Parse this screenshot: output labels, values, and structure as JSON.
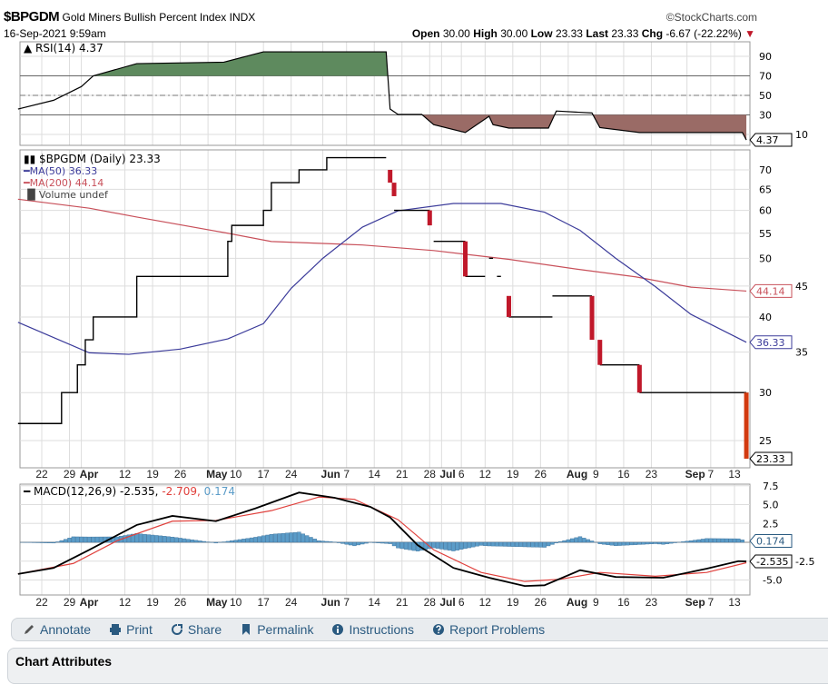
{
  "header": {
    "symbol": "$BPGDM",
    "name": "Gold Miners Bullish Percent Index",
    "exchange": "INDX",
    "date": "16-Sep-2021 9:59am",
    "copyright": "©StockCharts.com",
    "open_label": "Open",
    "open": "30.00",
    "high_label": "High",
    "high": "30.00",
    "low_label": "Low",
    "low": "23.33",
    "last_label": "Last",
    "last": "23.33",
    "chg_label": "Chg",
    "chg": "-6.67 (-22.22%)"
  },
  "colors": {
    "rsi_up": "#5e8a5e",
    "rsi_down": "#9a6b66",
    "ma50": "#3b3b9a",
    "ma200": "#c8505a",
    "candle_down": "#c0182a",
    "macd": "#000000",
    "signal": "#e0403c",
    "hist": "#5b9cc8"
  },
  "toolbar": [
    {
      "label": "Annotate",
      "icon": "pencil-icon"
    },
    {
      "label": "Print",
      "icon": "printer-icon"
    },
    {
      "label": "Share",
      "icon": "share-icon"
    },
    {
      "label": "Permalink",
      "icon": "bookmark-icon"
    },
    {
      "label": "Instructions",
      "icon": "info-icon"
    },
    {
      "label": "Report Problems",
      "icon": "question-icon"
    }
  ],
  "attributes_title": "Chart Attributes",
  "chart_data": [
    {
      "type": "area",
      "panel": "RSI",
      "legend": "RSI(14) 4.37",
      "last": "4.37",
      "yticks": [
        "90",
        "70",
        "50",
        "30",
        "10"
      ],
      "ylim": [
        0,
        100
      ],
      "points": [
        [
          "2021-03-16",
          36
        ],
        [
          "2021-03-25",
          45
        ],
        [
          "2021-04-01",
          59
        ],
        [
          "2021-04-04",
          70
        ],
        [
          "2021-04-15",
          82.5
        ],
        [
          "2021-05-07",
          84
        ],
        [
          "2021-05-17",
          94.6
        ],
        [
          "2021-06-17",
          94.6
        ],
        [
          "2021-06-18",
          36
        ],
        [
          "2021-06-20",
          30.5
        ],
        [
          "2021-06-26",
          30.5
        ],
        [
          "2021-06-29",
          20
        ],
        [
          "2021-07-07",
          12
        ],
        [
          "2021-07-13",
          28.6
        ],
        [
          "2021-07-14",
          20
        ],
        [
          "2021-07-18",
          16.5
        ],
        [
          "2021-07-28",
          16.5
        ],
        [
          "2021-07-30",
          34
        ],
        [
          "2021-08-08",
          32
        ],
        [
          "2021-08-10",
          17
        ],
        [
          "2021-08-20",
          12
        ],
        [
          "2021-09-15",
          12
        ],
        [
          "2021-09-16",
          4.37
        ]
      ]
    },
    {
      "type": "line",
      "panel": "Price",
      "scale": "log",
      "legend": "$BPGDM (Daily) 23.33",
      "ma50_legend": "MA(50) 36.33",
      "ma200_legend": "MA(200) 44.14",
      "volume_legend": "Volume undef",
      "yticks": [
        "70",
        "65",
        "60",
        "55",
        "50",
        "45",
        "40",
        "35",
        "30",
        "25"
      ],
      "ylim": [
        22,
        74
      ],
      "last_tags": {
        "ma200": "44.14",
        "ma50": "36.33",
        "price": "23.33"
      },
      "steps": [
        [
          "2021-03-16",
          26.67
        ],
        [
          "2021-03-27",
          30
        ],
        [
          "2021-03-31",
          33.33
        ],
        [
          "2021-04-02",
          36.67
        ],
        [
          "2021-04-04",
          40
        ],
        [
          "2021-04-15",
          46.67
        ],
        [
          "2021-05-08",
          53.33
        ],
        [
          "2021-05-09",
          56.67
        ],
        [
          "2021-05-16",
          56.67
        ],
        [
          "2021-05-17",
          60
        ],
        [
          "2021-05-19",
          66.67
        ],
        [
          "2021-05-26",
          70
        ],
        [
          "2021-06-02",
          73.33
        ],
        [
          "2021-06-17",
          73.33
        ]
      ],
      "segments": [
        [
          "2021-06-19",
          "2021-06-28",
          60
        ],
        [
          "2021-06-29",
          "2021-07-07",
          53.33
        ],
        [
          "2021-07-07",
          "2021-07-12",
          46.67
        ],
        [
          "2021-07-13",
          "2021-07-14",
          50
        ],
        [
          "2021-07-15",
          "2021-07-16",
          46.67
        ],
        [
          "2021-07-18",
          "2021-07-29",
          40
        ],
        [
          "2021-07-29",
          "2021-08-08",
          43.33
        ],
        [
          "2021-08-10",
          "2021-08-20",
          33.33
        ],
        [
          "2021-08-20",
          "2021-09-16",
          30
        ]
      ],
      "down_candles": [
        [
          "2021-06-18",
          70,
          66.67
        ],
        [
          "2021-06-19",
          66.67,
          63.33
        ],
        [
          "2021-06-28",
          60,
          56.67
        ],
        [
          "2021-07-07",
          53.33,
          46.67
        ],
        [
          "2021-07-18",
          43.33,
          40
        ],
        [
          "2021-08-08",
          43.33,
          36.67
        ],
        [
          "2021-08-10",
          36.67,
          33.33
        ],
        [
          "2021-08-20",
          33.33,
          30
        ],
        [
          "2021-09-16",
          30,
          23.33
        ]
      ],
      "ma50": [
        [
          "2021-03-16",
          39.2
        ],
        [
          "2021-04-03",
          34.9
        ],
        [
          "2021-04-13",
          34.7
        ],
        [
          "2021-04-26",
          35.4
        ],
        [
          "2021-05-08",
          36.8
        ],
        [
          "2021-05-17",
          39
        ],
        [
          "2021-05-24",
          44.6
        ],
        [
          "2021-06-01",
          50
        ],
        [
          "2021-06-11",
          56.3
        ],
        [
          "2021-06-20",
          59.9
        ],
        [
          "2021-07-04",
          61.6
        ],
        [
          "2021-07-16",
          61.6
        ],
        [
          "2021-07-27",
          59.6
        ],
        [
          "2021-08-05",
          55.6
        ],
        [
          "2021-08-14",
          50
        ],
        [
          "2021-08-24",
          44.9
        ],
        [
          "2021-09-02",
          40.4
        ],
        [
          "2021-09-16",
          36.33
        ]
      ],
      "ma200": [
        [
          "2021-03-16",
          62.6
        ],
        [
          "2021-04-03",
          60.5
        ],
        [
          "2021-04-15",
          58.5
        ],
        [
          "2021-05-08",
          55
        ],
        [
          "2021-05-19",
          53.3
        ],
        [
          "2021-06-11",
          52.6
        ],
        [
          "2021-06-29",
          51.5
        ],
        [
          "2021-07-18",
          49.8
        ],
        [
          "2021-08-05",
          47.9
        ],
        [
          "2021-08-19",
          46.6
        ],
        [
          "2021-09-02",
          44.8
        ],
        [
          "2021-09-16",
          44.14
        ]
      ]
    },
    {
      "type": "line",
      "panel": "MACD",
      "legend_prefix": "MACD(12,26,9) -2.535,",
      "legend_signal": " -2.709,",
      "legend_hist": " 0.174",
      "yticks": [
        "7.5",
        "5.0",
        "2.5",
        "0",
        "-2.5",
        "-5.0"
      ],
      "ytick_values": [
        7.5,
        5,
        2.5,
        0,
        -2.5,
        -5
      ],
      "ylim": [
        -6.5,
        8
      ],
      "last_tags": {
        "hist": "0.174",
        "macd": "-2.535"
      },
      "macd": [
        [
          "2021-03-16",
          -4.2
        ],
        [
          "2021-03-25",
          -3.4
        ],
        [
          "2021-04-03",
          -1
        ],
        [
          "2021-04-15",
          2.3
        ],
        [
          "2021-04-24",
          3.5
        ],
        [
          "2021-05-05",
          2.8
        ],
        [
          "2021-05-15",
          4.5
        ],
        [
          "2021-05-26",
          6.6
        ],
        [
          "2021-06-04",
          5.9
        ],
        [
          "2021-06-13",
          4.7
        ],
        [
          "2021-06-18",
          3.3
        ],
        [
          "2021-06-25",
          -0.4
        ],
        [
          "2021-07-04",
          -3.4
        ],
        [
          "2021-07-13",
          -4.7
        ],
        [
          "2021-07-22",
          -5.8
        ],
        [
          "2021-07-27",
          -5.7
        ],
        [
          "2021-08-05",
          -3.7
        ],
        [
          "2021-08-14",
          -4.6
        ],
        [
          "2021-08-26",
          -4.7
        ],
        [
          "2021-09-06",
          -3.5
        ],
        [
          "2021-09-14",
          -2.5
        ],
        [
          "2021-09-16",
          -2.535
        ]
      ],
      "signal": [
        [
          "2021-03-16",
          -4.2
        ],
        [
          "2021-03-30",
          -2.8
        ],
        [
          "2021-04-10",
          0.2
        ],
        [
          "2021-04-24",
          2.8
        ],
        [
          "2021-05-05",
          2.9
        ],
        [
          "2021-05-19",
          4.2
        ],
        [
          "2021-05-31",
          6
        ],
        [
          "2021-06-09",
          5.7
        ],
        [
          "2021-06-20",
          3
        ],
        [
          "2021-06-29",
          -1
        ],
        [
          "2021-07-11",
          -4
        ],
        [
          "2021-07-22",
          -5.2
        ],
        [
          "2021-07-31",
          -4.9
        ],
        [
          "2021-08-10",
          -4
        ],
        [
          "2021-08-24",
          -4.5
        ],
        [
          "2021-09-06",
          -4
        ],
        [
          "2021-09-16",
          -2.709
        ]
      ]
    }
  ],
  "xaxis": [
    [
      "2021-03-22",
      "22",
      false
    ],
    [
      "2021-03-29",
      "29",
      false
    ],
    [
      "2021-04-01",
      "Apr",
      true
    ],
    [
      "2021-04-12",
      "12",
      false
    ],
    [
      "2021-04-19",
      "19",
      false
    ],
    [
      "2021-04-26",
      "26",
      false
    ],
    [
      "2021-05-03",
      "May",
      true
    ],
    [
      "2021-05-10",
      "10",
      false
    ],
    [
      "2021-05-17",
      "17",
      false
    ],
    [
      "2021-05-24",
      "24",
      false
    ],
    [
      "2021-06-01",
      "Jun",
      true
    ],
    [
      "2021-06-07",
      "7",
      false
    ],
    [
      "2021-06-14",
      "14",
      false
    ],
    [
      "2021-06-21",
      "21",
      false
    ],
    [
      "2021-06-28",
      "28",
      false
    ],
    [
      "2021-07-01",
      "Jul",
      true
    ],
    [
      "2021-07-06",
      "6",
      false
    ],
    [
      "2021-07-12",
      "12",
      false
    ],
    [
      "2021-07-19",
      "19",
      false
    ],
    [
      "2021-07-26",
      "26",
      false
    ],
    [
      "2021-08-02",
      "Aug",
      true
    ],
    [
      "2021-08-09",
      "9",
      false
    ],
    [
      "2021-08-16",
      "16",
      false
    ],
    [
      "2021-08-23",
      "23",
      false
    ],
    [
      "2021-09-01",
      "Sep",
      true
    ],
    [
      "2021-09-07",
      "7",
      false
    ],
    [
      "2021-09-13",
      "13",
      false
    ]
  ]
}
